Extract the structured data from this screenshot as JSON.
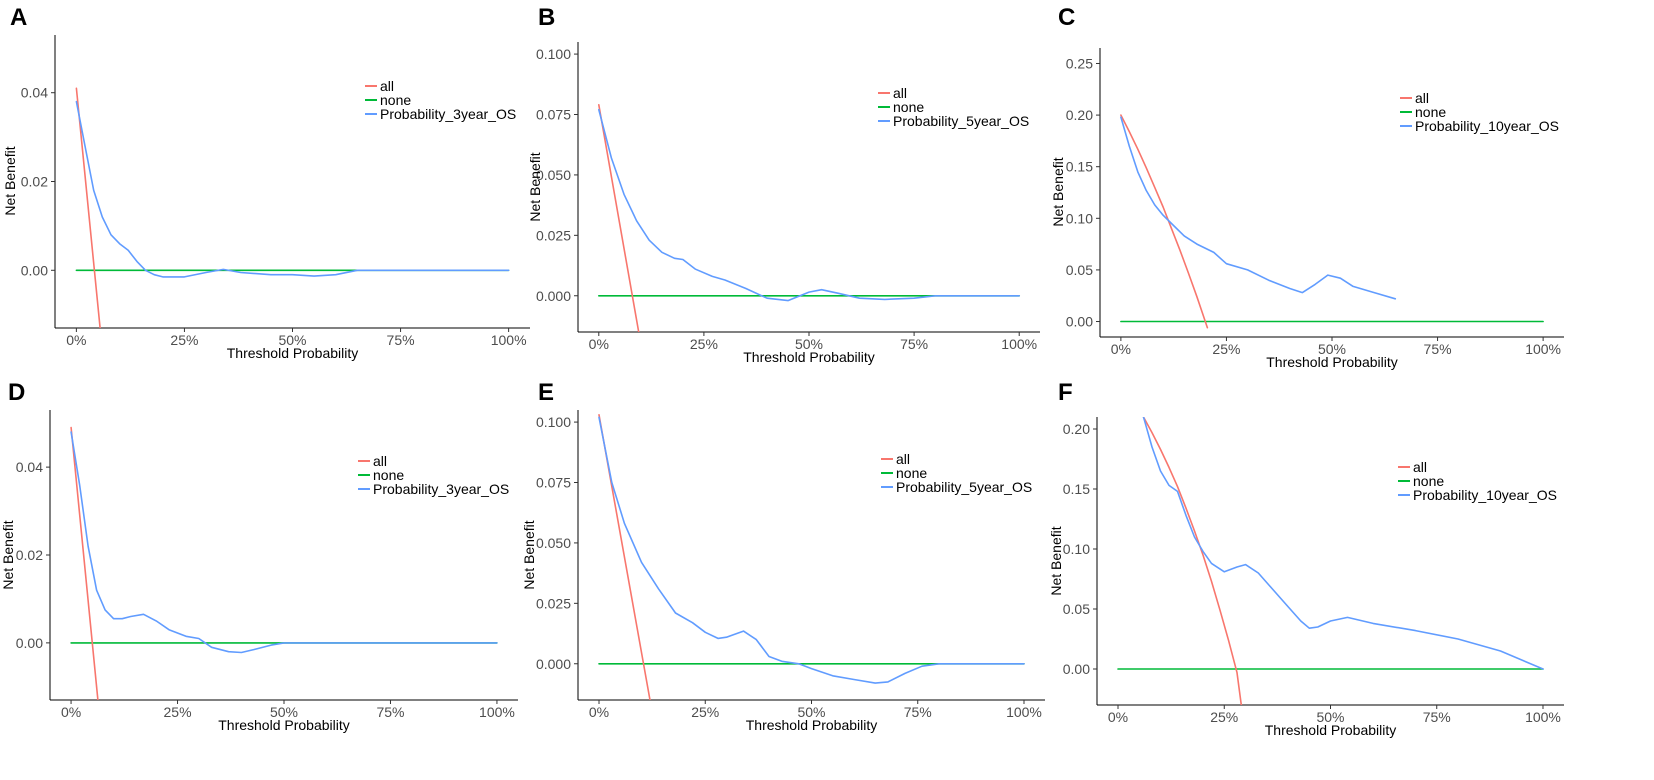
{
  "colors": {
    "all": "#F8766D",
    "none": "#00BA38",
    "model": "#619CFF"
  },
  "chart_data": [
    {
      "panel": "A",
      "type": "line",
      "xlabel": "Threshold Probability",
      "ylabel": "Net Benefit",
      "xlim": [
        0,
        1
      ],
      "ylim": [
        -0.013,
        0.053
      ],
      "xticks": [
        0,
        0.25,
        0.5,
        0.75,
        1.0
      ],
      "xtick_labels": [
        "0%",
        "25%",
        "50%",
        "75%",
        "100%"
      ],
      "yticks": [
        0,
        0.02,
        0.04
      ],
      "ytick_labels": [
        "0.00",
        "0.02",
        "0.04"
      ],
      "legend": [
        "all",
        "none",
        "Probability_3year_OS"
      ],
      "legend_position": "top-right",
      "series": [
        {
          "name": "all",
          "color_key": "all",
          "x": [
            0.0,
            0.055
          ],
          "y": [
            0.041,
            -0.013
          ]
        },
        {
          "name": "none",
          "color_key": "none",
          "x": [
            0.0,
            1.0
          ],
          "y": [
            0.0,
            0.0
          ]
        },
        {
          "name": "Probability_3year_OS",
          "color_key": "model",
          "x": [
            0.0,
            0.02,
            0.04,
            0.06,
            0.08,
            0.1,
            0.12,
            0.14,
            0.16,
            0.18,
            0.2,
            0.25,
            0.3,
            0.34,
            0.38,
            0.45,
            0.5,
            0.55,
            0.6,
            0.65,
            0.7,
            0.8,
            0.9,
            1.0
          ],
          "y": [
            0.038,
            0.028,
            0.018,
            0.012,
            0.008,
            0.006,
            0.0045,
            0.002,
            0.0,
            -0.001,
            -0.0015,
            -0.0015,
            -0.0005,
            0.0002,
            -0.0005,
            -0.001,
            -0.001,
            -0.0013,
            -0.001,
            0.0,
            0.0,
            0.0,
            0.0,
            0.0
          ]
        }
      ]
    },
    {
      "panel": "B",
      "type": "line",
      "xlabel": "Threshold Probability",
      "ylabel": "Net Benefit",
      "xlim": [
        0,
        1
      ],
      "ylim": [
        -0.015,
        0.105
      ],
      "xticks": [
        0,
        0.25,
        0.5,
        0.75,
        1.0
      ],
      "xtick_labels": [
        "0%",
        "25%",
        "50%",
        "75%",
        "100%"
      ],
      "yticks": [
        0,
        0.025,
        0.05,
        0.075,
        0.1
      ],
      "ytick_labels": [
        "0.000",
        "0.025",
        "0.050",
        "0.075",
        "0.100"
      ],
      "legend": [
        "all",
        "none",
        "Probability_5year_OS"
      ],
      "legend_position": "top-right",
      "series": [
        {
          "name": "all",
          "color_key": "all",
          "x": [
            0.0,
            0.095
          ],
          "y": [
            0.079,
            -0.015
          ]
        },
        {
          "name": "none",
          "color_key": "none",
          "x": [
            0.0,
            1.0
          ],
          "y": [
            0.0,
            0.0
          ]
        },
        {
          "name": "Probability_5year_OS",
          "color_key": "model",
          "x": [
            0.0,
            0.03,
            0.06,
            0.09,
            0.12,
            0.15,
            0.18,
            0.2,
            0.23,
            0.27,
            0.3,
            0.35,
            0.4,
            0.45,
            0.5,
            0.53,
            0.57,
            0.62,
            0.68,
            0.75,
            0.8,
            0.9,
            1.0
          ],
          "y": [
            0.077,
            0.057,
            0.042,
            0.031,
            0.023,
            0.018,
            0.0155,
            0.015,
            0.011,
            0.008,
            0.0065,
            0.003,
            -0.001,
            -0.002,
            0.0015,
            0.0025,
            0.001,
            -0.001,
            -0.0015,
            -0.001,
            0.0,
            0.0,
            0.0
          ]
        }
      ]
    },
    {
      "panel": "C",
      "type": "line",
      "xlabel": "Threshold Probability",
      "ylabel": "Net Benefit",
      "xlim": [
        0,
        1
      ],
      "ylim": [
        -0.015,
        0.265
      ],
      "xticks": [
        0,
        0.25,
        0.5,
        0.75,
        1.0
      ],
      "xtick_labels": [
        "0%",
        "25%",
        "50%",
        "75%",
        "100%"
      ],
      "yticks": [
        0,
        0.05,
        0.1,
        0.15,
        0.2,
        0.25
      ],
      "ytick_labels": [
        "0.00",
        "0.05",
        "0.10",
        "0.15",
        "0.20",
        "0.25"
      ],
      "legend": [
        "all",
        "none",
        "Probability_10year_OS"
      ],
      "legend_position": "top-right",
      "series": [
        {
          "name": "all",
          "color_key": "all",
          "x": [
            0.0,
            0.02,
            0.04,
            0.06,
            0.08,
            0.1,
            0.12,
            0.14,
            0.16,
            0.18,
            0.2,
            0.205
          ],
          "y": [
            0.2,
            0.184,
            0.167,
            0.149,
            0.13,
            0.111,
            0.09,
            0.069,
            0.047,
            0.024,
            0.0,
            -0.006
          ]
        },
        {
          "name": "none",
          "color_key": "none",
          "x": [
            0.0,
            1.0
          ],
          "y": [
            0.0,
            0.0
          ]
        },
        {
          "name": "Probability_10year_OS",
          "color_key": "model",
          "x": [
            0.0,
            0.02,
            0.04,
            0.06,
            0.08,
            0.1,
            0.12,
            0.15,
            0.18,
            0.22,
            0.25,
            0.3,
            0.35,
            0.4,
            0.43,
            0.46,
            0.49,
            0.52,
            0.55,
            0.6,
            0.65
          ],
          "y": [
            0.198,
            0.17,
            0.145,
            0.127,
            0.113,
            0.103,
            0.095,
            0.083,
            0.075,
            0.067,
            0.056,
            0.05,
            0.04,
            0.032,
            0.028,
            0.036,
            0.045,
            0.042,
            0.034,
            0.028,
            0.022
          ]
        }
      ]
    },
    {
      "panel": "D",
      "type": "line",
      "xlabel": "Threshold Probability",
      "ylabel": "Net Benefit",
      "xlim": [
        0,
        1
      ],
      "ylim": [
        -0.013,
        0.053
      ],
      "xticks": [
        0,
        0.25,
        0.5,
        0.75,
        1.0
      ],
      "xtick_labels": [
        "0%",
        "25%",
        "50%",
        "75%",
        "100%"
      ],
      "yticks": [
        0,
        0.02,
        0.04
      ],
      "ytick_labels": [
        "0.00",
        "0.02",
        "0.04"
      ],
      "legend": [
        "all",
        "none",
        "Probability_3year_OS"
      ],
      "legend_position": "top-right",
      "series": [
        {
          "name": "all",
          "color_key": "all",
          "x": [
            0.0,
            0.063
          ],
          "y": [
            0.049,
            -0.013
          ]
        },
        {
          "name": "none",
          "color_key": "none",
          "x": [
            0.0,
            1.0
          ],
          "y": [
            0.0,
            0.0
          ]
        },
        {
          "name": "Probability_3year_OS",
          "color_key": "model",
          "x": [
            0.0,
            0.02,
            0.04,
            0.06,
            0.08,
            0.1,
            0.12,
            0.14,
            0.17,
            0.2,
            0.23,
            0.27,
            0.3,
            0.33,
            0.37,
            0.4,
            0.43,
            0.47,
            0.5,
            0.55,
            0.6,
            0.7,
            0.8,
            0.9,
            1.0
          ],
          "y": [
            0.048,
            0.036,
            0.022,
            0.012,
            0.0075,
            0.0055,
            0.0055,
            0.006,
            0.0065,
            0.005,
            0.003,
            0.0015,
            0.001,
            -0.001,
            -0.002,
            -0.0022,
            -0.0015,
            -0.0005,
            0.0,
            0.0,
            0.0,
            0.0,
            0.0,
            0.0,
            0.0
          ]
        }
      ]
    },
    {
      "panel": "E",
      "type": "line",
      "xlabel": "Threshold Probability",
      "ylabel": "Net Benefit",
      "xlim": [
        0,
        1
      ],
      "ylim": [
        -0.015,
        0.105
      ],
      "xticks": [
        0,
        0.25,
        0.5,
        0.75,
        1.0
      ],
      "xtick_labels": [
        "0%",
        "25%",
        "50%",
        "75%",
        "100%"
      ],
      "yticks": [
        0,
        0.025,
        0.05,
        0.075,
        0.1
      ],
      "ytick_labels": [
        "0.000",
        "0.025",
        "0.050",
        "0.075",
        "0.100"
      ],
      "legend": [
        "all",
        "none",
        "Probability_5year_OS"
      ],
      "legend_position": "top-right",
      "series": [
        {
          "name": "all",
          "color_key": "all",
          "x": [
            0.0,
            0.12
          ],
          "y": [
            0.103,
            -0.015
          ]
        },
        {
          "name": "none",
          "color_key": "none",
          "x": [
            0.0,
            1.0
          ],
          "y": [
            0.0,
            0.0
          ]
        },
        {
          "name": "Probability_5year_OS",
          "color_key": "model",
          "x": [
            0.0,
            0.03,
            0.06,
            0.1,
            0.14,
            0.18,
            0.22,
            0.25,
            0.28,
            0.3,
            0.34,
            0.37,
            0.4,
            0.43,
            0.47,
            0.5,
            0.55,
            0.6,
            0.65,
            0.68,
            0.72,
            0.76,
            0.8,
            0.9,
            1.0
          ],
          "y": [
            0.102,
            0.075,
            0.058,
            0.042,
            0.031,
            0.021,
            0.017,
            0.013,
            0.0105,
            0.011,
            0.0135,
            0.01,
            0.003,
            0.001,
            0.0,
            -0.002,
            -0.005,
            -0.0065,
            -0.008,
            -0.0075,
            -0.004,
            -0.001,
            0.0,
            0.0,
            0.0
          ]
        }
      ]
    },
    {
      "panel": "F",
      "type": "line",
      "xlabel": "Threshold Probability",
      "ylabel": "Net Benefit",
      "xlim": [
        0,
        1
      ],
      "ylim": [
        -0.03,
        0.21
      ],
      "xticks": [
        0,
        0.25,
        0.5,
        0.75,
        1.0
      ],
      "xtick_labels": [
        "0%",
        "25%",
        "50%",
        "75%",
        "100%"
      ],
      "yticks": [
        0,
        0.05,
        0.1,
        0.15,
        0.2
      ],
      "ytick_labels": [
        "0.00",
        "0.05",
        "0.10",
        "0.15",
        "0.20"
      ],
      "legend": [
        "all",
        "none",
        "Probability_10year_OS"
      ],
      "legend_position": "top-right",
      "series": [
        {
          "name": "all",
          "color_key": "all",
          "x": [
            0.06,
            0.08,
            0.1,
            0.12,
            0.14,
            0.16,
            0.18,
            0.2,
            0.22,
            0.24,
            0.26,
            0.28,
            0.29
          ],
          "y": [
            0.21,
            0.197,
            0.183,
            0.168,
            0.152,
            0.134,
            0.115,
            0.095,
            0.073,
            0.049,
            0.024,
            -0.003,
            -0.03
          ]
        },
        {
          "name": "none",
          "color_key": "none",
          "x": [
            0.0,
            1.0
          ],
          "y": [
            0.0,
            0.0
          ]
        },
        {
          "name": "Probability_10year_OS",
          "color_key": "model",
          "x": [
            0.06,
            0.08,
            0.1,
            0.12,
            0.14,
            0.16,
            0.18,
            0.2,
            0.22,
            0.25,
            0.28,
            0.3,
            0.33,
            0.36,
            0.4,
            0.43,
            0.45,
            0.47,
            0.5,
            0.54,
            0.6,
            0.7,
            0.8,
            0.9,
            1.0
          ],
          "y": [
            0.21,
            0.185,
            0.165,
            0.153,
            0.148,
            0.128,
            0.11,
            0.098,
            0.088,
            0.081,
            0.085,
            0.087,
            0.08,
            0.068,
            0.052,
            0.04,
            0.034,
            0.035,
            0.04,
            0.043,
            0.038,
            0.032,
            0.025,
            0.015,
            0.0
          ]
        }
      ]
    }
  ]
}
